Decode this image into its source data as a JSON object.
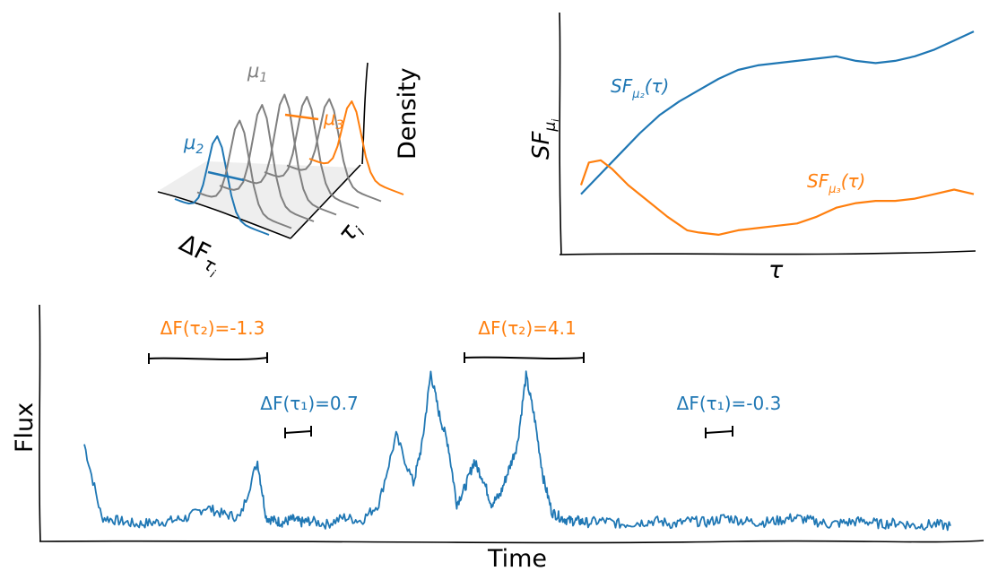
{
  "colors": {
    "blue": "#1f77b4",
    "orange": "#ff7f0e",
    "gray": "#808080",
    "axis": "#000000"
  },
  "density_panel": {
    "ylabel": "Density",
    "xlabel_base": "ΔF",
    "xlabel_sub": "τ",
    "xlabel_subsub": "i",
    "zlabel_base": "τ",
    "zlabel_sub": "i",
    "mu1_base": "μ",
    "mu1_sub": "1",
    "mu2_base": "μ",
    "mu2_sub": "2",
    "mu3_base": "μ",
    "mu3_sub": "3"
  },
  "sf_panel": {
    "ylabel_base": "SF",
    "ylabel_sub": "μ",
    "ylabel_subsub": "i",
    "xlabel": "τ",
    "blue_label": {
      "base": "SF",
      "sub": "μ₂",
      "arg": "(τ)"
    },
    "orange_label": {
      "base": "SF",
      "sub": "μ₃",
      "arg": "(τ)"
    }
  },
  "flux_panel": {
    "xlabel": "Time",
    "ylabel": "Flux",
    "annotations": [
      {
        "text": "ΔF(τ₂)=-1.3",
        "series": "orange"
      },
      {
        "text": "ΔF(τ₁)=0.7",
        "series": "blue"
      },
      {
        "text": "ΔF(τ₂)=4.1",
        "series": "orange"
      },
      {
        "text": "ΔF(τ₁)=-0.3",
        "series": "blue"
      }
    ]
  },
  "chart_data": [
    {
      "type": "line",
      "series": [
        {
          "name": "SFμ2(τ)",
          "color": "blue",
          "x": [
            0,
            0.05,
            0.1,
            0.15,
            0.2,
            0.25,
            0.3,
            0.35,
            0.4,
            0.45,
            0.5,
            0.55,
            0.6,
            0.65,
            0.7,
            0.75,
            0.8,
            0.85,
            0.9,
            0.95,
            1.0
          ],
          "y": [
            0.22,
            0.31,
            0.4,
            0.49,
            0.57,
            0.63,
            0.68,
            0.73,
            0.77,
            0.79,
            0.8,
            0.81,
            0.82,
            0.83,
            0.81,
            0.8,
            0.81,
            0.83,
            0.86,
            0.9,
            0.94
          ]
        },
        {
          "name": "SFμ3(τ)",
          "color": "orange",
          "x": [
            0,
            0.02,
            0.05,
            0.08,
            0.12,
            0.17,
            0.22,
            0.27,
            0.3,
            0.35,
            0.4,
            0.45,
            0.5,
            0.55,
            0.6,
            0.65,
            0.7,
            0.75,
            0.8,
            0.85,
            0.9,
            0.95,
            1.0
          ],
          "y": [
            0.26,
            0.36,
            0.37,
            0.33,
            0.26,
            0.19,
            0.12,
            0.06,
            0.05,
            0.04,
            0.06,
            0.07,
            0.08,
            0.09,
            0.12,
            0.16,
            0.18,
            0.19,
            0.19,
            0.2,
            0.22,
            0.24,
            0.22
          ]
        }
      ]
    },
    {
      "type": "line",
      "series": [
        {
          "name": "Flux",
          "color": "blue",
          "x": [
            0,
            0.02,
            0.04,
            0.06,
            0.08,
            0.1,
            0.12,
            0.14,
            0.16,
            0.18,
            0.2,
            0.21,
            0.22,
            0.23,
            0.24,
            0.25,
            0.26,
            0.28,
            0.3,
            0.32,
            0.34,
            0.36,
            0.38,
            0.39,
            0.4,
            0.41,
            0.42,
            0.43,
            0.44,
            0.45,
            0.46,
            0.47,
            0.48,
            0.49,
            0.5,
            0.51,
            0.52,
            0.53,
            0.54,
            0.55,
            0.56,
            0.57,
            0.58,
            0.6,
            0.62,
            0.64,
            0.66,
            0.68,
            0.7,
            0.72,
            0.74,
            0.76,
            0.78,
            0.8,
            0.82,
            0.84,
            0.86,
            0.88,
            0.9,
            0.92,
            0.94,
            0.96,
            0.98,
            1.0
          ],
          "y": [
            0.55,
            0.12,
            0.1,
            0.08,
            0.09,
            0.1,
            0.12,
            0.18,
            0.14,
            0.12,
            0.45,
            0.12,
            0.1,
            0.09,
            0.11,
            0.09,
            0.1,
            0.08,
            0.12,
            0.1,
            0.2,
            0.6,
            0.32,
            0.55,
            0.97,
            0.72,
            0.55,
            0.2,
            0.3,
            0.45,
            0.35,
            0.2,
            0.25,
            0.4,
            0.55,
            0.95,
            0.7,
            0.35,
            0.15,
            0.12,
            0.1,
            0.1,
            0.09,
            0.1,
            0.08,
            0.09,
            0.1,
            0.08,
            0.1,
            0.09,
            0.12,
            0.1,
            0.09,
            0.1,
            0.12,
            0.1,
            0.08,
            0.09,
            0.1,
            0.08,
            0.09,
            0.07,
            0.08,
            0.07
          ]
        }
      ]
    }
  ]
}
